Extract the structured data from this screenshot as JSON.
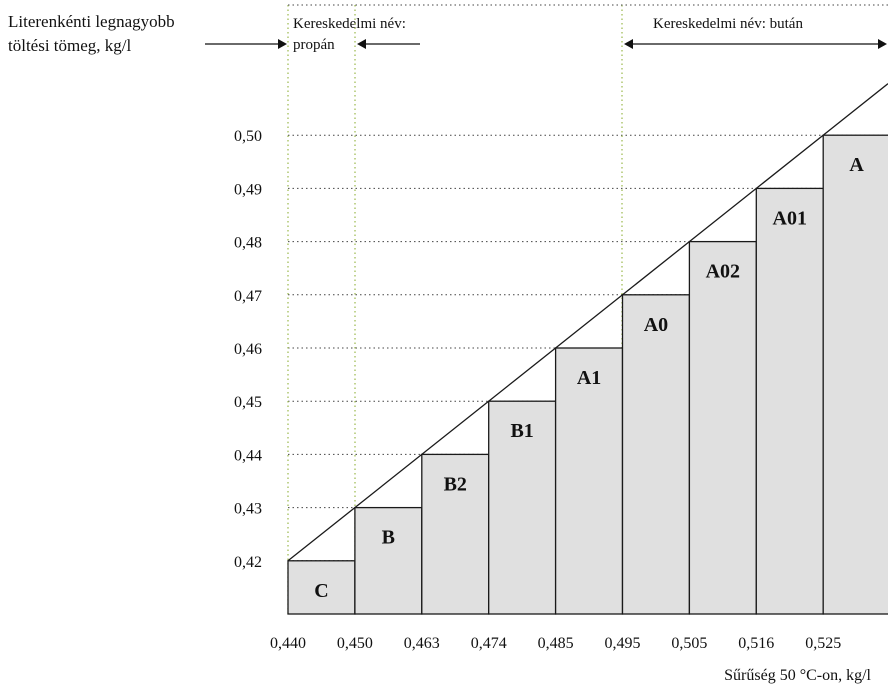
{
  "chart_data": {
    "type": "bar",
    "ylabel": "Literenkénti legnagyobb töltési tömeg, kg/l",
    "xlabel": "Sűrűség 50 °C-on, kg/l",
    "x_ticks": [
      "0,440",
      "0,450",
      "0,463",
      "0,474",
      "0,485",
      "0,495",
      "0,505",
      "0,516",
      "0,525"
    ],
    "y_ticks": [
      "0,42",
      "0,43",
      "0,44",
      "0,45",
      "0,46",
      "0,47",
      "0,48",
      "0,49",
      "0,50"
    ],
    "ylim": [
      0.41,
      0.51
    ],
    "categories": [
      "C",
      "B",
      "B2",
      "B1",
      "A1",
      "A0",
      "A02",
      "A01",
      "A"
    ],
    "values": [
      0.42,
      0.43,
      0.44,
      0.45,
      0.46,
      0.47,
      0.48,
      0.49,
      0.5
    ],
    "grid": true,
    "annotations": {
      "propane_name": "Kereskedelmi név: propán",
      "butane_name": "Kereskedelmi név: bután"
    },
    "colors": {
      "bar_fill": "#e0e0e0",
      "bar_stroke": "#1a1a1a",
      "grid": "#444444",
      "boundary": "#9ab84a"
    }
  }
}
